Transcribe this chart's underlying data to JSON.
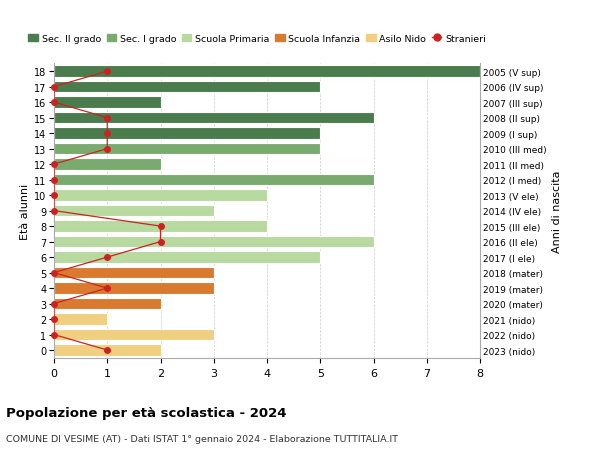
{
  "ages": [
    18,
    17,
    16,
    15,
    14,
    13,
    12,
    11,
    10,
    9,
    8,
    7,
    6,
    5,
    4,
    3,
    2,
    1,
    0
  ],
  "right_labels": [
    "2005 (V sup)",
    "2006 (IV sup)",
    "2007 (III sup)",
    "2008 (II sup)",
    "2009 (I sup)",
    "2010 (III med)",
    "2011 (II med)",
    "2012 (I med)",
    "2013 (V ele)",
    "2014 (IV ele)",
    "2015 (III ele)",
    "2016 (II ele)",
    "2017 (I ele)",
    "2018 (mater)",
    "2019 (mater)",
    "2020 (mater)",
    "2021 (nido)",
    "2022 (nido)",
    "2023 (nido)"
  ],
  "bar_values": [
    8,
    5,
    2,
    6,
    5,
    5,
    2,
    6,
    4,
    3,
    4,
    6,
    5,
    3,
    3,
    2,
    1,
    3,
    2
  ],
  "bar_colors": [
    "#4a7c4e",
    "#4a7c4e",
    "#4a7c4e",
    "#4a7c4e",
    "#4a7c4e",
    "#7aab6e",
    "#7aab6e",
    "#7aab6e",
    "#b8d9a0",
    "#b8d9a0",
    "#b8d9a0",
    "#b8d9a0",
    "#b8d9a0",
    "#d97a2e",
    "#d97a2e",
    "#d97a2e",
    "#f0d080",
    "#f0d080",
    "#f0d080"
  ],
  "stranieri_x": [
    1,
    0,
    0,
    1,
    1,
    1,
    0,
    0,
    0,
    0,
    2,
    2,
    1,
    0,
    1,
    0,
    0,
    0,
    1
  ],
  "title": "Popolazione per età scolastica - 2024",
  "subtitle": "COMUNE DI VESIME (AT) - Dati ISTAT 1° gennaio 2024 - Elaborazione TUTTITALIA.IT",
  "ylabel_label": "Età alunni",
  "right_ylabel": "Anni di nascita",
  "xlim": [
    0,
    8
  ],
  "xticks": [
    0,
    1,
    2,
    3,
    4,
    5,
    6,
    7,
    8
  ],
  "legend_items": [
    {
      "label": "Sec. II grado",
      "color": "#4a7c4e",
      "type": "patch"
    },
    {
      "label": "Sec. I grado",
      "color": "#7aab6e",
      "type": "patch"
    },
    {
      "label": "Scuola Primaria",
      "color": "#b8d9a0",
      "type": "patch"
    },
    {
      "label": "Scuola Infanzia",
      "color": "#d97a2e",
      "type": "patch"
    },
    {
      "label": "Asilo Nido",
      "color": "#f0d080",
      "type": "patch"
    },
    {
      "label": "Stranieri",
      "color": "#cc2222",
      "type": "line"
    }
  ],
  "bg_color": "#ffffff",
  "grid_color": "#cccccc",
  "bar_height": 0.75
}
